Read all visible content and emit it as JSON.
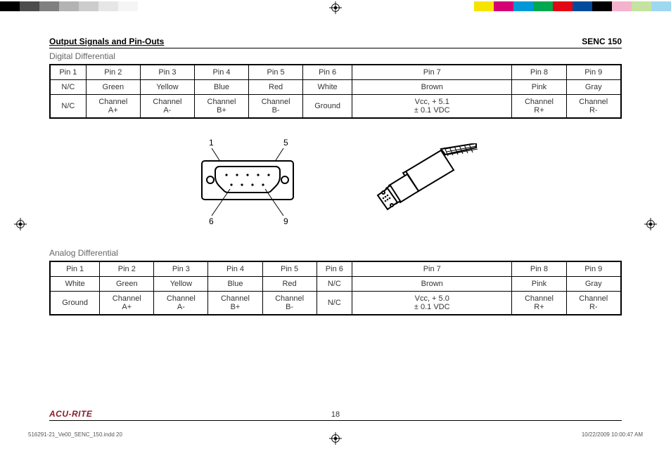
{
  "colorbars": {
    "left": [
      "#000000",
      "#4d4d4d",
      "#808080",
      "#b3b3b3",
      "#cccccc",
      "#e6e6e6",
      "#f5f5f5"
    ],
    "right": [
      "#f6e400",
      "#d60075",
      "#0099d8",
      "#00a850",
      "#e30613",
      "#004b9b",
      "#000000",
      "#f5b2cc",
      "#c5e3a0",
      "#9ed8f0"
    ]
  },
  "header": {
    "title": "Output Signals and Pin-Outs",
    "model": "SENC 150"
  },
  "section1": {
    "title": "Digital Differential",
    "headers": [
      "Pin 1",
      "Pin 2",
      "Pin 3",
      "Pin 4",
      "Pin 5",
      "Pin 6",
      "Pin 7",
      "Pin 8",
      "Pin 9"
    ],
    "row_color": [
      "N/C",
      "Green",
      "Yellow",
      "Blue",
      "Red",
      "White",
      "Brown",
      "Pink",
      "Gray"
    ],
    "row_func": [
      "N/C",
      "Channel A+",
      "Channel A-",
      "Channel B+",
      "Channel B-",
      "Ground",
      "Vcc, + 5.1 ± 0.1 VDC",
      "Channel R+",
      "Channel R-"
    ]
  },
  "connector_labels": {
    "tl": "1",
    "tr": "5",
    "bl": "6",
    "br": "9"
  },
  "section2": {
    "title": "Analog Differential",
    "headers": [
      "Pin 1",
      "Pin 2",
      "Pin 3",
      "Pin 4",
      "Pin 5",
      "Pin 6",
      "Pin 7",
      "Pin 8",
      "Pin 9"
    ],
    "row_color": [
      "White",
      "Green",
      "Yellow",
      "Blue",
      "Red",
      "N/C",
      "Brown",
      "Pink",
      "Gray"
    ],
    "row_func": [
      "Ground",
      "Channel A+",
      "Channel A-",
      "Channel B+",
      "Channel B-",
      "N/C",
      "Vcc, + 5.0 ± 0.1 VDC",
      "Channel R+",
      "Channel R-"
    ]
  },
  "footer": {
    "brand": "ACU-RITE",
    "page": "18"
  },
  "imprint": {
    "file": "516291-21_Ve00_SENC_150.indd   20",
    "datetime": "10/22/2009   10:00:47 AM"
  }
}
